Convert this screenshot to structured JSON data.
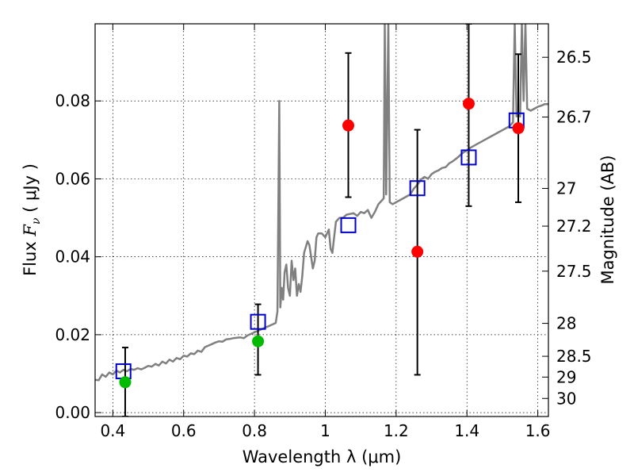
{
  "chart_data": {
    "type": "scatter",
    "xlabel": "Wavelength  λ (μm)",
    "ylabel_main": "Flux ",
    "ylabel_symbol": "F",
    "ylabel_subscript": "ν",
    "ylabel_unit": " ( μJy )",
    "right_axis_label": "Magnitude (AB)",
    "xlim": [
      0.35,
      1.63
    ],
    "ylim": [
      -0.001,
      0.0998
    ],
    "grid": true,
    "x_ticks": [
      {
        "value": 0.4,
        "label": "0.4"
      },
      {
        "value": 0.6,
        "label": "0.6"
      },
      {
        "value": 0.8,
        "label": "0.8"
      },
      {
        "value": 1.0,
        "label": "1"
      },
      {
        "value": 1.2,
        "label": "1.2"
      },
      {
        "value": 1.4,
        "label": "1.4"
      },
      {
        "value": 1.6,
        "label": "1.6"
      }
    ],
    "y_ticks": [
      {
        "value": 0.0,
        "label": "0.00"
      },
      {
        "value": 0.02,
        "label": "0.02"
      },
      {
        "value": 0.04,
        "label": "0.04"
      },
      {
        "value": 0.06,
        "label": "0.06"
      },
      {
        "value": 0.08,
        "label": "0.08"
      }
    ],
    "right_ticks": [
      {
        "value": 26.5,
        "label": "26.5"
      },
      {
        "value": 26.7,
        "label": "26.7"
      },
      {
        "value": 27.0,
        "label": "27"
      },
      {
        "value": 27.2,
        "label": "27.2"
      },
      {
        "value": 27.5,
        "label": "27.5"
      },
      {
        "value": 28.0,
        "label": "28"
      },
      {
        "value": 28.5,
        "label": "28.5"
      },
      {
        "value": 29.0,
        "label": "29"
      },
      {
        "value": 30.0,
        "label": "30"
      }
    ],
    "template_spectrum": {
      "color": "#808080",
      "points": [
        [
          0.35,
          0.0084
        ],
        [
          0.36,
          0.0083
        ],
        [
          0.37,
          0.0098
        ],
        [
          0.38,
          0.0092
        ],
        [
          0.39,
          0.0103
        ],
        [
          0.4,
          0.0098
        ],
        [
          0.41,
          0.0108
        ],
        [
          0.42,
          0.0103
        ],
        [
          0.43,
          0.011
        ],
        [
          0.44,
          0.0106
        ],
        [
          0.45,
          0.0112
        ],
        [
          0.46,
          0.011
        ],
        [
          0.47,
          0.0114
        ],
        [
          0.48,
          0.0111
        ],
        [
          0.49,
          0.0115
        ],
        [
          0.5,
          0.012
        ],
        [
          0.51,
          0.0118
        ],
        [
          0.52,
          0.0125
        ],
        [
          0.53,
          0.0121
        ],
        [
          0.54,
          0.0131
        ],
        [
          0.55,
          0.0126
        ],
        [
          0.56,
          0.0136
        ],
        [
          0.57,
          0.0131
        ],
        [
          0.58,
          0.014
        ],
        [
          0.59,
          0.0137
        ],
        [
          0.6,
          0.0146
        ],
        [
          0.61,
          0.0144
        ],
        [
          0.62,
          0.0152
        ],
        [
          0.63,
          0.015
        ],
        [
          0.64,
          0.0159
        ],
        [
          0.65,
          0.0156
        ],
        [
          0.66,
          0.0168
        ],
        [
          0.67,
          0.0172
        ],
        [
          0.68,
          0.0176
        ],
        [
          0.69,
          0.018
        ],
        [
          0.7,
          0.0183
        ],
        [
          0.71,
          0.0182
        ],
        [
          0.72,
          0.0188
        ],
        [
          0.73,
          0.0189
        ],
        [
          0.74,
          0.0191
        ],
        [
          0.75,
          0.0192
        ],
        [
          0.76,
          0.0193
        ],
        [
          0.77,
          0.0191
        ],
        [
          0.78,
          0.0198
        ],
        [
          0.79,
          0.0202
        ],
        [
          0.8,
          0.0206
        ],
        [
          0.81,
          0.021
        ],
        [
          0.82,
          0.0214
        ],
        [
          0.83,
          0.0218
        ],
        [
          0.84,
          0.0222
        ],
        [
          0.85,
          0.0226
        ],
        [
          0.86,
          0.023
        ],
        [
          0.865,
          0.026
        ],
        [
          0.87,
          0.08
        ],
        [
          0.873,
          0.027
        ],
        [
          0.877,
          0.032
        ],
        [
          0.881,
          0.029
        ],
        [
          0.885,
          0.036
        ],
        [
          0.89,
          0.038
        ],
        [
          0.895,
          0.032
        ],
        [
          0.9,
          0.03
        ],
        [
          0.905,
          0.039
        ],
        [
          0.91,
          0.034
        ],
        [
          0.915,
          0.037
        ],
        [
          0.92,
          0.03
        ],
        [
          0.925,
          0.033
        ],
        [
          0.93,
          0.031
        ],
        [
          0.935,
          0.035
        ],
        [
          0.94,
          0.041
        ],
        [
          0.95,
          0.044
        ],
        [
          0.955,
          0.043
        ],
        [
          0.96,
          0.04
        ],
        [
          0.965,
          0.037
        ],
        [
          0.97,
          0.039
        ],
        [
          0.975,
          0.045
        ],
        [
          0.98,
          0.046
        ],
        [
          0.99,
          0.046
        ],
        [
          1.0,
          0.045
        ],
        [
          1.01,
          0.047
        ],
        [
          1.015,
          0.042
        ],
        [
          1.02,
          0.041
        ],
        [
          1.025,
          0.045
        ],
        [
          1.03,
          0.049
        ],
        [
          1.04,
          0.05
        ],
        [
          1.05,
          0.05
        ],
        [
          1.06,
          0.0508
        ],
        [
          1.08,
          0.0512
        ],
        [
          1.09,
          0.0505
        ],
        [
          1.1,
          0.0515
        ],
        [
          1.11,
          0.0512
        ],
        [
          1.12,
          0.052
        ],
        [
          1.13,
          0.05
        ],
        [
          1.14,
          0.0515
        ],
        [
          1.15,
          0.0535
        ],
        [
          1.16,
          0.0545
        ],
        [
          1.165,
          0.055
        ],
        [
          1.168,
          0.0999
        ],
        [
          1.172,
          0.056
        ],
        [
          1.178,
          0.0999
        ],
        [
          1.182,
          0.054
        ],
        [
          1.19,
          0.0535
        ],
        [
          1.2,
          0.054
        ],
        [
          1.21,
          0.0545
        ],
        [
          1.22,
          0.055
        ],
        [
          1.23,
          0.0555
        ],
        [
          1.24,
          0.056
        ],
        [
          1.25,
          0.0575
        ],
        [
          1.26,
          0.0585
        ],
        [
          1.27,
          0.0598
        ],
        [
          1.28,
          0.0605
        ],
        [
          1.29,
          0.06
        ],
        [
          1.3,
          0.0612
        ],
        [
          1.31,
          0.0618
        ],
        [
          1.32,
          0.0622
        ],
        [
          1.33,
          0.0628
        ],
        [
          1.34,
          0.063
        ],
        [
          1.35,
          0.064
        ],
        [
          1.36,
          0.0645
        ],
        [
          1.37,
          0.0652
        ],
        [
          1.38,
          0.066
        ],
        [
          1.39,
          0.0668
        ],
        [
          1.4,
          0.0673
        ],
        [
          1.41,
          0.068
        ],
        [
          1.42,
          0.0685
        ],
        [
          1.43,
          0.069
        ],
        [
          1.44,
          0.0695
        ],
        [
          1.45,
          0.07
        ],
        [
          1.46,
          0.0705
        ],
        [
          1.47,
          0.071
        ],
        [
          1.48,
          0.0715
        ],
        [
          1.49,
          0.072
        ],
        [
          1.5,
          0.0725
        ],
        [
          1.51,
          0.073
        ],
        [
          1.52,
          0.0735
        ],
        [
          1.53,
          0.0745
        ],
        [
          1.535,
          0.0999
        ],
        [
          1.54,
          0.076
        ],
        [
          1.545,
          0.077
        ],
        [
          1.55,
          0.076
        ],
        [
          1.555,
          0.0999
        ],
        [
          1.56,
          0.08
        ],
        [
          1.565,
          0.0999
        ],
        [
          1.57,
          0.078
        ],
        [
          1.58,
          0.0775
        ],
        [
          1.59,
          0.078
        ],
        [
          1.6,
          0.0785
        ],
        [
          1.61,
          0.0788
        ],
        [
          1.62,
          0.0792
        ],
        [
          1.63,
          0.0792
        ]
      ]
    },
    "model_photometry": {
      "marker": "open-square",
      "color": "#0000cc",
      "points": [
        [
          0.43,
          0.0106
        ],
        [
          0.81,
          0.0233
        ],
        [
          1.065,
          0.0481
        ],
        [
          1.26,
          0.0576
        ],
        [
          1.405,
          0.0655
        ],
        [
          1.54,
          0.075
        ]
      ]
    },
    "observed_photometry": {
      "marker": "filled-circle",
      "color": "#ff0000",
      "points": [
        [
          1.065,
          0.0737
        ],
        [
          1.26,
          0.0413
        ],
        [
          1.405,
          0.0793
        ],
        [
          1.545,
          0.073
        ]
      ]
    },
    "detections": {
      "marker": "filled-circle",
      "color": "#00bb00",
      "points": [
        [
          0.435,
          0.0078
        ],
        [
          0.81,
          0.0183
        ]
      ]
    },
    "error_bars": [
      {
        "x": 0.435,
        "low": -0.001,
        "high": 0.0167
      },
      {
        "x": 0.81,
        "low": 0.0097,
        "high": 0.0278
      },
      {
        "x": 1.065,
        "low": 0.0553,
        "high": 0.0923
      },
      {
        "x": 1.26,
        "low": 0.0097,
        "high": 0.0726
      },
      {
        "x": 1.405,
        "low": 0.053,
        "high": 0.0998
      },
      {
        "x": 1.545,
        "low": 0.054,
        "high": 0.092
      }
    ]
  }
}
